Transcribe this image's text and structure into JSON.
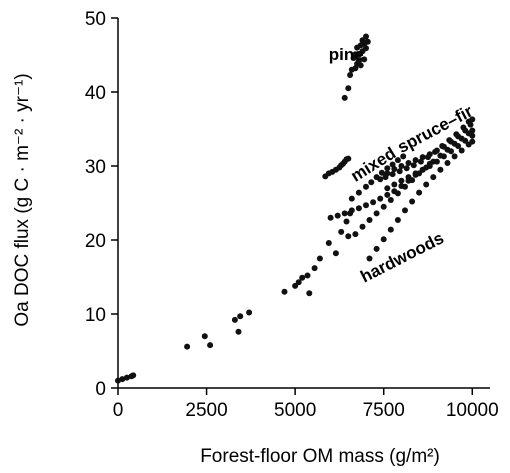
{
  "chart_data": {
    "type": "scatter",
    "xlabel": "Forest-floor OM mass (g/m²)",
    "ylabel": "Oa DOC flux (g C · m⁻² · yr⁻¹)",
    "xlim": [
      0,
      10500
    ],
    "ylim": [
      0,
      50
    ],
    "xticks": [
      0,
      2500,
      5000,
      7500,
      10000
    ],
    "yticks": [
      0,
      10,
      20,
      30,
      40,
      50
    ],
    "xtick_labels": [
      "0",
      "2500",
      "5000",
      "7500",
      "10000"
    ],
    "ytick_labels": [
      "0",
      "10",
      "20",
      "30",
      "40",
      "50"
    ],
    "grid": false,
    "annotations": [
      {
        "text": "pine",
        "x": 5950,
        "y": 44.3,
        "angle": 0
      },
      {
        "text": "mixed",
        "x": 6700,
        "y": 27.8,
        "angle": -32
      },
      {
        "text": "spruce–fir",
        "x": 8000,
        "y": 31.7,
        "angle": -28
      },
      {
        "text": "hardwoods",
        "x": 6950,
        "y": 14.2,
        "angle": -27
      }
    ],
    "series": [
      {
        "points": [
          [
            0,
            1.0
          ],
          [
            120,
            1.2
          ],
          [
            250,
            1.4
          ],
          [
            380,
            1.6
          ],
          [
            430,
            1.7
          ]
        ]
      },
      {
        "points": [
          [
            1950,
            5.6
          ],
          [
            2450,
            7.0
          ],
          [
            2600,
            5.8
          ],
          [
            3300,
            9.2
          ],
          [
            3400,
            7.6
          ],
          [
            3450,
            9.7
          ],
          [
            3700,
            10.2
          ]
        ]
      },
      {
        "points": [
          [
            4700,
            13.0
          ],
          [
            5000,
            13.8
          ],
          [
            5100,
            14.3
          ],
          [
            5200,
            14.9
          ],
          [
            5350,
            15.2
          ],
          [
            5400,
            12.8
          ],
          [
            5550,
            16.2
          ],
          [
            5700,
            17.5
          ],
          [
            5950,
            19.6
          ],
          [
            6150,
            18.2
          ],
          [
            6300,
            21.1
          ],
          [
            6450,
            22.5
          ],
          [
            6550,
            23.6
          ],
          [
            6500,
            20.5
          ]
        ]
      },
      {
        "points": [
          [
            6400,
            39.2
          ],
          [
            6500,
            40.5
          ],
          [
            6550,
            42.3
          ],
          [
            6600,
            43.0
          ],
          [
            6650,
            44.6
          ],
          [
            6700,
            43.2
          ],
          [
            6700,
            45.1
          ],
          [
            6750,
            43.8
          ],
          [
            6750,
            46.0
          ],
          [
            6800,
            45.0
          ],
          [
            6800,
            44.2
          ],
          [
            6850,
            46.3
          ],
          [
            6850,
            43.6
          ],
          [
            6900,
            47.0
          ],
          [
            6900,
            45.5
          ],
          [
            6950,
            46.5
          ],
          [
            6950,
            44.4
          ],
          [
            7000,
            47.5
          ],
          [
            7000,
            45.9
          ],
          [
            7050,
            46.8
          ]
        ]
      },
      {
        "points": [
          [
            5850,
            28.6
          ],
          [
            5950,
            29.0
          ],
          [
            6050,
            29.2
          ],
          [
            6150,
            29.5
          ],
          [
            6250,
            29.8
          ],
          [
            6300,
            30.1
          ],
          [
            6350,
            30.3
          ],
          [
            6400,
            30.6
          ],
          [
            6450,
            30.9
          ],
          [
            6500,
            31.0
          ]
        ]
      },
      {
        "points": [
          [
            6600,
            25.6
          ],
          [
            6800,
            26.4
          ],
          [
            7000,
            27.2
          ],
          [
            7150,
            27.8
          ],
          [
            7300,
            28.5
          ],
          [
            7450,
            29.1
          ],
          [
            7600,
            29.7
          ],
          [
            7750,
            30.2
          ],
          [
            7900,
            30.8
          ],
          [
            8050,
            31.3
          ]
        ]
      },
      {
        "points": [
          [
            6000,
            23.0
          ],
          [
            6200,
            23.3
          ],
          [
            6400,
            23.6
          ],
          [
            6600,
            24.0
          ],
          [
            6800,
            24.3
          ],
          [
            7000,
            24.7
          ],
          [
            7200,
            25.1
          ],
          [
            7400,
            25.6
          ],
          [
            7600,
            26.1
          ],
          [
            7800,
            26.6
          ],
          [
            8000,
            27.3
          ],
          [
            8200,
            28.0
          ],
          [
            8400,
            28.8
          ],
          [
            8600,
            29.5
          ],
          [
            8800,
            30.3
          ]
        ]
      },
      {
        "points": [
          [
            6700,
            20.8
          ],
          [
            6900,
            21.8
          ],
          [
            7100,
            22.7
          ],
          [
            7300,
            23.6
          ],
          [
            7500,
            24.5
          ],
          [
            7700,
            25.4
          ],
          [
            7900,
            26.3
          ],
          [
            8100,
            27.2
          ],
          [
            8300,
            28.1
          ],
          [
            8500,
            29.0
          ],
          [
            8700,
            29.8
          ],
          [
            8900,
            30.6
          ],
          [
            9100,
            31.4
          ],
          [
            9300,
            32.2
          ],
          [
            9500,
            33.0
          ],
          [
            9700,
            33.7
          ],
          [
            9900,
            34.4
          ],
          [
            10000,
            34.8
          ]
        ]
      },
      {
        "points": [
          [
            7100,
            17.5
          ],
          [
            7300,
            18.8
          ],
          [
            7500,
            20.1
          ],
          [
            7700,
            21.4
          ],
          [
            7900,
            22.7
          ],
          [
            8100,
            24.0
          ],
          [
            8300,
            25.2
          ],
          [
            8500,
            26.4
          ],
          [
            8700,
            27.5
          ],
          [
            8900,
            28.5
          ],
          [
            9100,
            29.5
          ],
          [
            9300,
            30.4
          ],
          [
            9500,
            31.3
          ],
          [
            9700,
            32.1
          ],
          [
            9900,
            32.9
          ],
          [
            10000,
            33.3
          ]
        ]
      },
      {
        "points": [
          [
            7400,
            28.2
          ],
          [
            7600,
            29.0
          ],
          [
            7800,
            29.6
          ],
          [
            8000,
            30.0
          ],
          [
            8200,
            30.4
          ],
          [
            8400,
            30.8
          ],
          [
            8600,
            31.2
          ],
          [
            8800,
            31.6
          ],
          [
            9000,
            32.1
          ],
          [
            9200,
            32.6
          ],
          [
            9400,
            33.3
          ],
          [
            9600,
            34.0
          ],
          [
            9800,
            34.8
          ],
          [
            9950,
            35.6
          ],
          [
            10000,
            36.3
          ],
          [
            9900,
            36.0
          ],
          [
            9750,
            35.2
          ],
          [
            9550,
            34.3
          ],
          [
            9350,
            33.5
          ],
          [
            9150,
            32.7
          ],
          [
            8950,
            31.9
          ],
          [
            8750,
            31.2
          ],
          [
            8550,
            30.6
          ],
          [
            8350,
            30.1
          ],
          [
            8150,
            29.7
          ],
          [
            7950,
            29.3
          ],
          [
            7750,
            28.9
          ],
          [
            7550,
            28.5
          ]
        ]
      },
      {
        "points": [
          [
            7600,
            27.0
          ],
          [
            7800,
            27.5
          ],
          [
            8000,
            28.0
          ],
          [
            8200,
            28.5
          ],
          [
            8400,
            29.0
          ],
          [
            8600,
            29.5
          ],
          [
            8800,
            30.0
          ],
          [
            9000,
            30.6
          ],
          [
            9200,
            31.3
          ],
          [
            9400,
            32.0
          ],
          [
            9600,
            32.7
          ],
          [
            9800,
            33.4
          ],
          [
            10000,
            34.1
          ]
        ]
      }
    ]
  }
}
